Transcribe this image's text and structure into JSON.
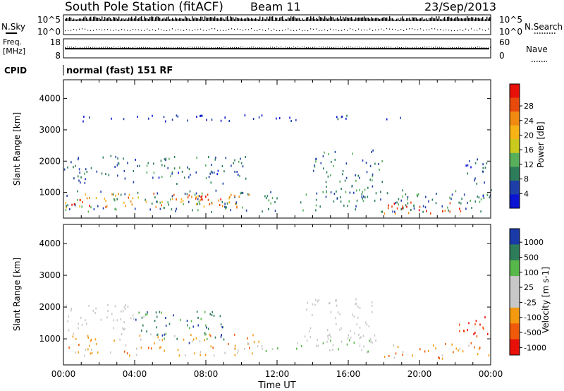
{
  "header": {
    "station": "South Pole Station (fitACF)",
    "beam": "Beam 11",
    "date": "23/Sep/2013"
  },
  "noise_panel": {
    "left_label": "N.Sky",
    "right_label": "N.Search",
    "left_ticks": [
      "10^5",
      "10^0"
    ],
    "right_ticks": [
      "10^5",
      "10^0"
    ]
  },
  "freq_panel": {
    "left_label_1": "Freq.",
    "left_label_2": "[MHz]",
    "right_label": "Nave",
    "left_ticks": [
      "18",
      "8"
    ],
    "right_ticks": [
      "60",
      "0"
    ]
  },
  "cpid": {
    "label": "CPID",
    "value": "normal (fast) 151 RF"
  },
  "xaxis": {
    "label": "Time UT",
    "ticks": [
      "00:00",
      "04:00",
      "08:00",
      "12:00",
      "16:00",
      "20:00",
      "00:00"
    ]
  },
  "colors": {
    "power": [
      "#0a14d2",
      "#1f3fa8",
      "#2e7d5a",
      "#58b05a",
      "#c9c91e",
      "#f7b216",
      "#f08a10",
      "#e84a0c",
      "#e8110a"
    ],
    "velocity": [
      "#e8110a",
      "#f05a0a",
      "#f39a10",
      "#c8c8c8",
      "#c8c8c8",
      "#58b74a",
      "#2e7d5a",
      "#1a3aa8"
    ]
  },
  "chart_data": [
    {
      "type": "heatmap",
      "panel": "power",
      "xlabel": "Time UT",
      "ylabel": "Slant Range [km]",
      "y_ticks": [
        1000,
        2000,
        3000,
        4000
      ],
      "ylim": [
        180,
        4600
      ],
      "xlim": [
        "00:00",
        "24:00"
      ],
      "colorbar": {
        "label": "Power [dB]",
        "ticks": [
          "4",
          "8",
          "12",
          "16",
          "20",
          "24",
          "28"
        ],
        "range": [
          0,
          30
        ]
      },
      "regions": [
        {
          "t": [
            0,
            24
          ],
          "r": [
            400,
            1100
          ],
          "v": 8
        },
        {
          "t": [
            0,
            10.5
          ],
          "r": [
            550,
            1000
          ],
          "v": 20
        },
        {
          "t": [
            0.2,
            1.6
          ],
          "r": [
            550,
            900
          ],
          "v": 28
        },
        {
          "t": [
            6.0,
            9.0
          ],
          "r": [
            600,
            1000
          ],
          "v": 28
        },
        {
          "t": [
            18.0,
            23.0
          ],
          "r": [
            350,
            750
          ],
          "v": 26
        },
        {
          "t": [
            0,
            10.5
          ],
          "r": [
            1300,
            2200
          ],
          "v": 7
        },
        {
          "t": [
            14,
            18
          ],
          "r": [
            1000,
            2400
          ],
          "v": 8
        },
        {
          "t": [
            22.5,
            24
          ],
          "r": [
            900,
            2100
          ],
          "v": 6
        },
        {
          "t": [
            1,
            19
          ],
          "r": [
            3300,
            3500
          ],
          "v": 3
        }
      ]
    },
    {
      "type": "heatmap",
      "panel": "velocity",
      "xlabel": "Time UT",
      "ylabel": "Slant Range [km]",
      "y_ticks": [
        1000,
        2000,
        3000,
        4000
      ],
      "ylim": [
        180,
        4600
      ],
      "xlim": [
        "00:00",
        "24:00"
      ],
      "colorbar": {
        "label": "Velocity [m s-1]",
        "ticks": [
          "1000",
          "500",
          "100",
          "25",
          "-25",
          "-100",
          "-500",
          "-1000"
        ],
        "range": [
          -1000,
          1000
        ]
      },
      "regions": [
        {
          "t": [
            0,
            11
          ],
          "r": [
            500,
            1200
          ],
          "v": -300
        },
        {
          "t": [
            11,
            18
          ],
          "r": [
            600,
            1000
          ],
          "v": 150
        },
        {
          "t": [
            18,
            24
          ],
          "r": [
            400,
            900
          ],
          "v": -400
        },
        {
          "t": [
            22,
            24
          ],
          "r": [
            1100,
            1800
          ],
          "v": -800
        },
        {
          "t": [
            0,
            4.5
          ],
          "r": [
            1300,
            2100
          ],
          "v": 0
        },
        {
          "t": [
            13.5,
            17.5
          ],
          "r": [
            1000,
            2300
          ],
          "v": 0
        },
        {
          "t": [
            4,
            9
          ],
          "r": [
            900,
            1900
          ],
          "v": 600
        }
      ]
    }
  ]
}
